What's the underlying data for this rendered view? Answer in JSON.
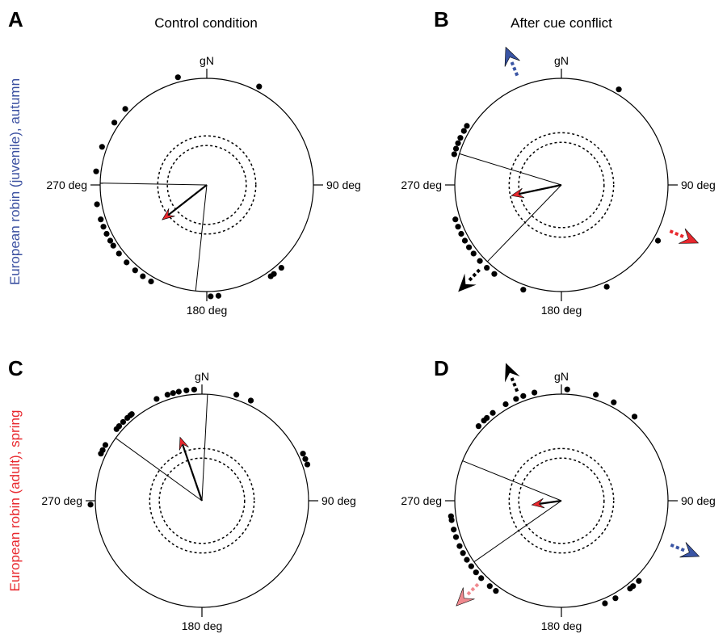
{
  "column_titles": [
    "Control condition",
    "After cue conflict"
  ],
  "row_labels": [
    {
      "text": "European robin (juvenile), autumn",
      "color": "#3a4fa0"
    },
    {
      "text": "European robin (adult), spring",
      "color": "#e8282e"
    }
  ],
  "colors": {
    "red": "#e8282e",
    "blue": "#3a55a4",
    "pink": "#f08a8f",
    "black": "#000000"
  },
  "chart_data": [
    {
      "panel": "A",
      "type": "scatter",
      "kind": "circular",
      "tick_labels": {
        "north": "gN",
        "east": "90 deg",
        "south": "180 deg",
        "west": "270 deg"
      },
      "points_deg": [
        345,
        28,
        210,
        215,
        220,
        226,
        232,
        237,
        240,
        244,
        248,
        252,
        260,
        277,
        290,
        304,
        313,
        138,
        143,
        145,
        174,
        178
      ],
      "mean_vector": {
        "direction_deg": 232,
        "length": 0.53
      },
      "confidence_interval_deg": [
        186,
        271
      ],
      "significance_circles": [
        0.37,
        0.46
      ]
    },
    {
      "panel": "B",
      "type": "scatter",
      "kind": "circular",
      "tick_labels": {
        "north": "gN",
        "east": "90 deg",
        "south": "180 deg",
        "west": "270 deg"
      },
      "points_deg": [
        31,
        120,
        156,
        200,
        217,
        222,
        227,
        232,
        236,
        240,
        244,
        248,
        252,
        286,
        289,
        292,
        295,
        299,
        302
      ],
      "mean_vector": {
        "direction_deg": 258,
        "length": 0.48
      },
      "confidence_interval_deg": [
        224,
        287
      ],
      "significance_circles": [
        0.4,
        0.49
      ],
      "cue_arrows": [
        {
          "direction_deg": 338,
          "color": "#3a55a4"
        },
        {
          "direction_deg": 113,
          "color": "#e8282e"
        },
        {
          "direction_deg": 224,
          "color": "#000000"
        }
      ]
    },
    {
      "panel": "C",
      "type": "scatter",
      "kind": "circular",
      "tick_labels": {
        "north": "gN",
        "east": "90 deg",
        "south": "180 deg",
        "west": "270 deg"
      },
      "points_deg": [
        268,
        295,
        297,
        300,
        310,
        312,
        315,
        318,
        320,
        321,
        336,
        342,
        345,
        348,
        352,
        356,
        18,
        26,
        65,
        68,
        71
      ],
      "mean_vector": {
        "direction_deg": 341,
        "length": 0.63
      },
      "confidence_interval_deg": [
        306,
        3
      ],
      "significance_circles": [
        0.4,
        0.49
      ]
    },
    {
      "panel": "D",
      "type": "scatter",
      "kind": "circular",
      "tick_labels": {
        "north": "gN",
        "east": "90 deg",
        "south": "180 deg",
        "west": "270 deg"
      },
      "points_deg": [
        3,
        18,
        28,
        41,
        136,
        140,
        142,
        151,
        157,
        216,
        220,
        226,
        230,
        234,
        238,
        242,
        246,
        251,
        255,
        260,
        262,
        312,
        316,
        318,
        322,
        330,
        336,
        340,
        346
      ],
      "mean_vector": {
        "direction_deg": 262,
        "length": 0.28
      },
      "confidence_interval_deg": [
        235,
        292
      ],
      "significance_circles": [
        0.4,
        0.49
      ],
      "cue_arrows": [
        {
          "direction_deg": 338,
          "color": "#000000"
        },
        {
          "direction_deg": 112,
          "color": "#3a55a4"
        },
        {
          "direction_deg": 225,
          "color": "#f08a8f"
        }
      ]
    }
  ]
}
